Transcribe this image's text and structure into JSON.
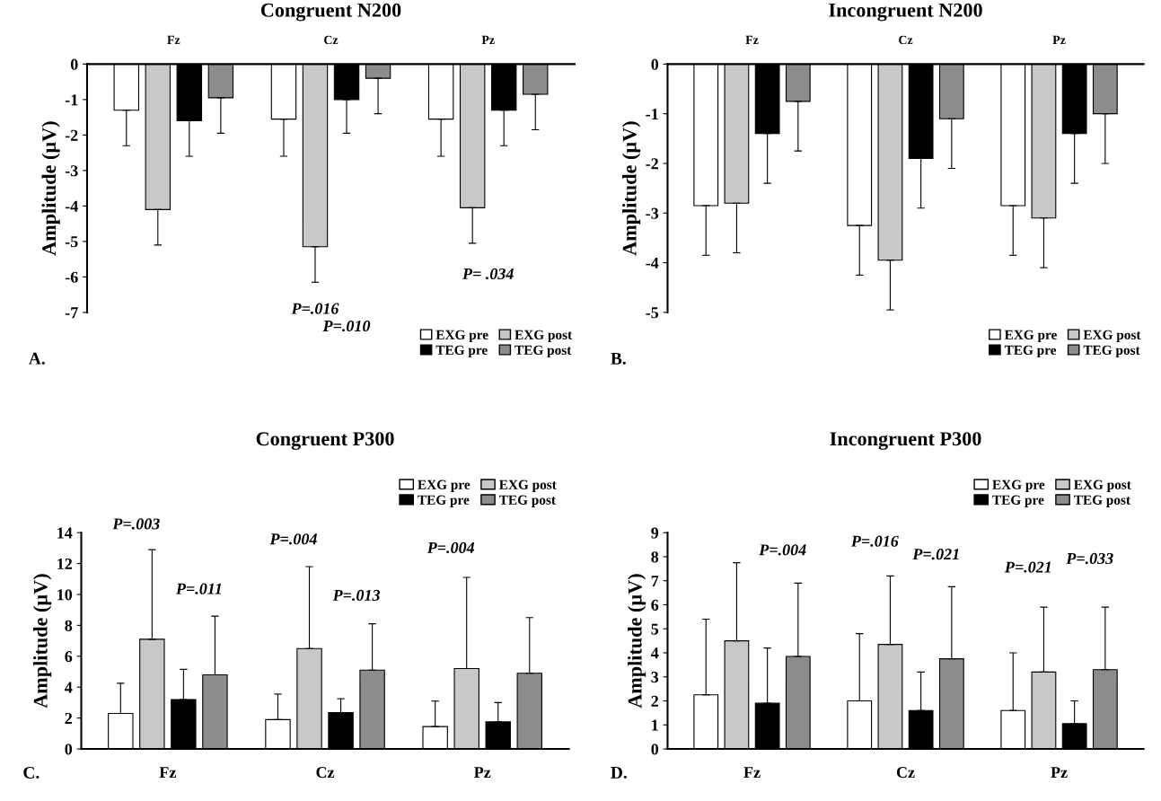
{
  "chart_data": [
    {
      "type": "bar",
      "title": "Congruent N200",
      "ylabel": "Amplitude (µV)",
      "categories": [
        "Fz",
        "Cz",
        "Pz"
      ],
      "ylim": [
        -7,
        0
      ],
      "yticks": [
        0,
        -1,
        -2,
        -3,
        -4,
        -5,
        -6,
        -7
      ],
      "legend": "bottom right",
      "grid": false,
      "series": [
        {
          "name": "EXG pre",
          "color": "#ffffff",
          "values": [
            -1.3,
            -1.55,
            -1.55
          ],
          "errors": [
            [
              -2.3,
              -1.3
            ],
            [
              -2.6,
              -1.55
            ],
            [
              -2.6,
              -1.55
            ]
          ]
        },
        {
          "name": "EXG post",
          "color": "#c8c8c8",
          "values": [
            -4.1,
            -5.15,
            -4.05
          ],
          "errors": [
            [
              -5.1,
              -4.1
            ],
            [
              -6.15,
              -5.15
            ],
            [
              -5.05,
              -4.05
            ]
          ]
        },
        {
          "name": "TEG pre",
          "color": "#000000",
          "values": [
            -1.6,
            -1.0,
            -1.3
          ],
          "errors": [
            [
              -2.6,
              -1.6
            ],
            [
              -1.95,
              -1.0
            ],
            [
              -2.3,
              -1.3
            ]
          ]
        },
        {
          "name": "TEG post",
          "color": "#8c8c8c",
          "values": [
            -0.95,
            -0.4,
            -0.85
          ],
          "errors": [
            [
              -1.95,
              -0.95
            ],
            [
              -1.4,
              -0.4
            ],
            [
              -1.85,
              -0.85
            ]
          ]
        }
      ],
      "annotations": [
        "A.",
        "P=.016",
        "P=.010",
        "P= .034"
      ]
    },
    {
      "type": "bar",
      "title": "Incongruent N200",
      "ylabel": "Amplitude (µV)",
      "categories": [
        "Fz",
        "Cz",
        "Pz"
      ],
      "ylim": [
        -5,
        0
      ],
      "yticks": [
        0,
        -1,
        -2,
        -3,
        -4,
        -5
      ],
      "legend": "bottom right",
      "grid": false,
      "series": [
        {
          "name": "EXG pre",
          "color": "#ffffff",
          "values": [
            -2.85,
            -3.25,
            -2.85
          ],
          "errors": [
            [
              -3.85,
              -2.85
            ],
            [
              -4.25,
              -3.25
            ],
            [
              -3.85,
              -2.85
            ]
          ]
        },
        {
          "name": "EXG post",
          "color": "#c8c8c8",
          "values": [
            -2.8,
            -3.95,
            -3.1
          ],
          "errors": [
            [
              -3.8,
              -2.8
            ],
            [
              -4.95,
              -3.95
            ],
            [
              -4.1,
              -3.1
            ]
          ]
        },
        {
          "name": "TEG pre",
          "color": "#000000",
          "values": [
            -1.4,
            -1.9,
            -1.4
          ],
          "errors": [
            [
              -2.4,
              -1.4
            ],
            [
              -2.9,
              -1.9
            ],
            [
              -2.4,
              -1.4
            ]
          ]
        },
        {
          "name": "TEG post",
          "color": "#8c8c8c",
          "values": [
            -0.75,
            -1.1,
            -1.0
          ],
          "errors": [
            [
              -1.75,
              -0.75
            ],
            [
              -2.1,
              -1.1
            ],
            [
              -2.0,
              -1.0
            ]
          ]
        }
      ],
      "annotations": [
        "B."
      ]
    },
    {
      "type": "bar",
      "title": "Congruent P300",
      "ylabel": "Amplitude (µV)",
      "categories": [
        "Fz",
        "Cz",
        "Pz"
      ],
      "ylim": [
        0,
        14
      ],
      "yticks": [
        0,
        2,
        4,
        6,
        8,
        10,
        12,
        14
      ],
      "legend": "top right",
      "grid": false,
      "series": [
        {
          "name": "EXG pre",
          "color": "#ffffff",
          "values": [
            2.3,
            1.9,
            1.45
          ],
          "errors": [
            [
              2.3,
              4.25
            ],
            [
              1.9,
              3.55
            ],
            [
              1.45,
              3.1
            ]
          ]
        },
        {
          "name": "EXG post",
          "color": "#c8c8c8",
          "values": [
            7.1,
            6.5,
            5.2
          ],
          "errors": [
            [
              7.1,
              12.9
            ],
            [
              6.5,
              11.8
            ],
            [
              5.2,
              11.1
            ]
          ]
        },
        {
          "name": "TEG pre",
          "color": "#000000",
          "values": [
            3.2,
            2.35,
            1.75
          ],
          "errors": [
            [
              3.2,
              5.15
            ],
            [
              2.35,
              3.25
            ],
            [
              1.75,
              3.0
            ]
          ]
        },
        {
          "name": "TEG post",
          "color": "#8c8c8c",
          "values": [
            4.8,
            5.1,
            4.9
          ],
          "errors": [
            [
              4.8,
              8.6
            ],
            [
              5.1,
              8.1
            ],
            [
              4.9,
              8.5
            ]
          ]
        }
      ],
      "annotations": [
        "C.",
        "P=.003",
        "P=.011",
        "P=.004",
        "P=.013",
        "P=.004"
      ]
    },
    {
      "type": "bar",
      "title": "Incongruent P300",
      "ylabel": "Amplitude (µV)",
      "categories": [
        "Fz",
        "Cz",
        "Pz"
      ],
      "ylim": [
        0,
        9
      ],
      "yticks": [
        0,
        1,
        2,
        3,
        4,
        5,
        6,
        7,
        8,
        9
      ],
      "legend": "top right",
      "grid": false,
      "series": [
        {
          "name": "EXG pre",
          "color": "#ffffff",
          "values": [
            2.25,
            2.0,
            1.6
          ],
          "errors": [
            [
              2.25,
              5.4
            ],
            [
              2.0,
              4.8
            ],
            [
              1.6,
              4.0
            ]
          ]
        },
        {
          "name": "EXG post",
          "color": "#c8c8c8",
          "values": [
            4.5,
            4.35,
            3.2
          ],
          "errors": [
            [
              4.5,
              7.75
            ],
            [
              4.35,
              7.2
            ],
            [
              3.2,
              5.9
            ]
          ]
        },
        {
          "name": "TEG pre",
          "color": "#000000",
          "values": [
            1.9,
            1.6,
            1.05
          ],
          "errors": [
            [
              1.9,
              4.2
            ],
            [
              1.6,
              3.2
            ],
            [
              1.05,
              2.0
            ]
          ]
        },
        {
          "name": "TEG post",
          "color": "#8c8c8c",
          "values": [
            3.85,
            3.75,
            3.3
          ],
          "errors": [
            [
              3.85,
              6.9
            ],
            [
              3.75,
              6.75
            ],
            [
              3.3,
              5.9
            ]
          ]
        }
      ],
      "annotations": [
        "D.",
        "P=.004",
        "P=.016",
        "P=.021",
        "P=.021",
        "P=.033"
      ]
    }
  ]
}
